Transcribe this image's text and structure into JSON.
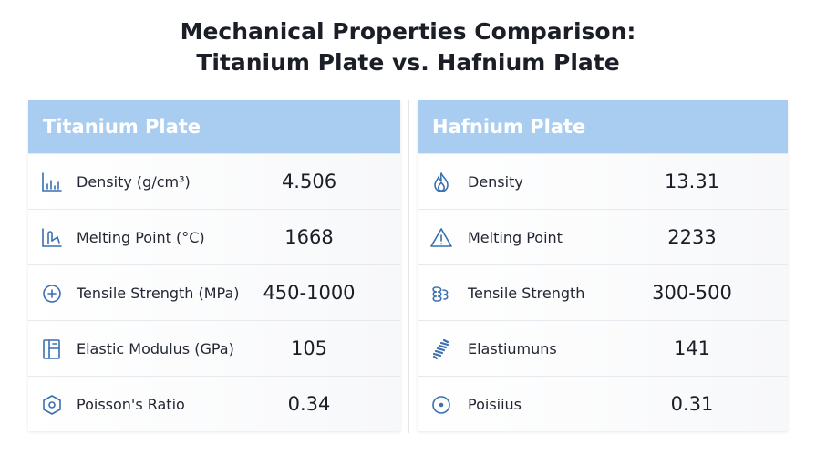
{
  "title": {
    "line1": "Mechanical Properties Comparison:",
    "line2": "Titanium Plate vs. Hafnium Plate"
  },
  "colors": {
    "header_bg": "#a9cdf0",
    "header_text": "#ffffff",
    "icon": "#3a6fb0"
  },
  "titanium": {
    "header": "Titanium Plate",
    "rows": [
      {
        "icon": "bar-chart-icon",
        "label": "Density (g/cm³)",
        "value": "4.506"
      },
      {
        "icon": "thermometer-chart-icon",
        "label": "Melting Point (°C)",
        "value": "1668"
      },
      {
        "icon": "plus-circle-icon",
        "label": "Tensile Strength (MPa)",
        "value": "450-1000"
      },
      {
        "icon": "modulus-frame-icon",
        "label": "Elastic Modulus (GPa)",
        "value": "105"
      },
      {
        "icon": "hexagon-icon",
        "label": "Poisson's Ratio",
        "value": "0.34"
      }
    ]
  },
  "hafnium": {
    "header": "Hafnium Plate",
    "rows": [
      {
        "icon": "flame-icon",
        "label": "Density",
        "value": "13.31"
      },
      {
        "icon": "warning-triangle-icon",
        "label": "Melting Point",
        "value": "2233"
      },
      {
        "icon": "coil-icon",
        "label": "Tensile Strength",
        "value": "300-500"
      },
      {
        "icon": "spring-icon",
        "label": "Elastiumuns",
        "value": "141"
      },
      {
        "icon": "dot-circle-icon",
        "label": "Poisiius",
        "value": "0.31"
      }
    ]
  }
}
